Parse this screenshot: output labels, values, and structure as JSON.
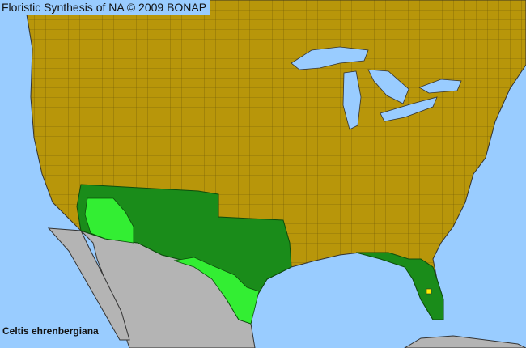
{
  "map": {
    "title": "Floristic Synthesis of NA © 2009 BONAP",
    "species": "Celtis ehrenbergiana",
    "colors": {
      "ocean": "#99ccff",
      "absent": "#b8960a",
      "present_state": "#1a8c1a",
      "present_county": "#33ee33",
      "outside_region": "#b4b4b4",
      "rare_county": "#ffee00",
      "boundaries": "#333333"
    }
  }
}
